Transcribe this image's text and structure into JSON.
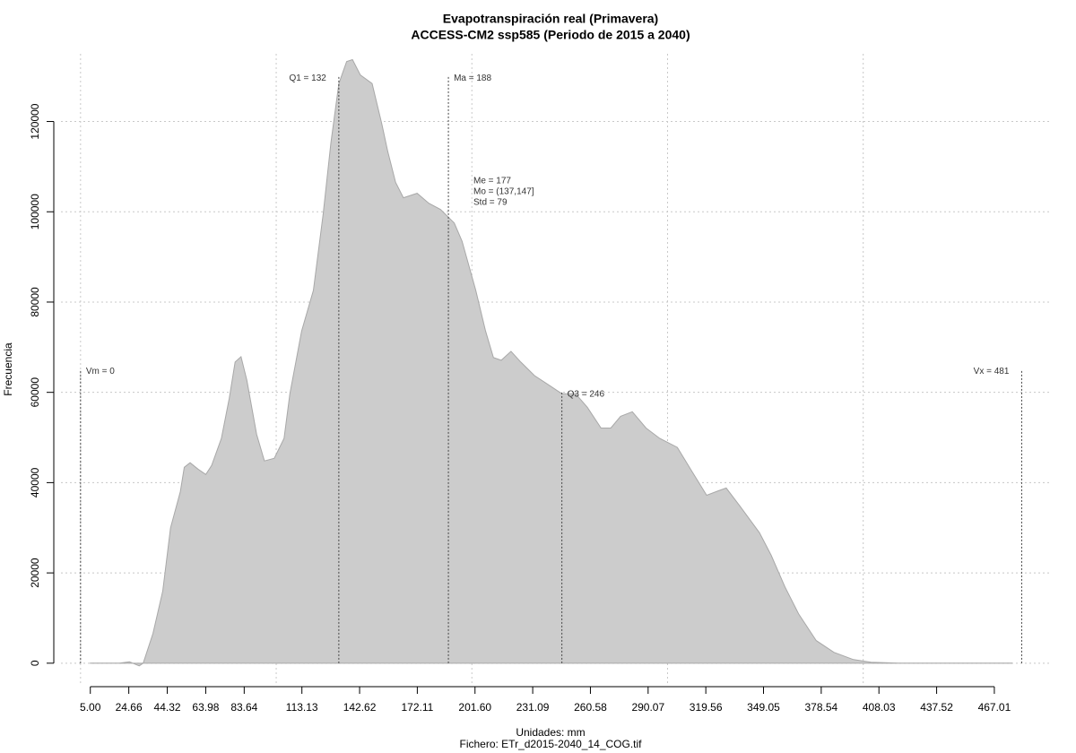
{
  "chart_data": {
    "type": "area",
    "title": "Evapotranspiración real (Primavera)",
    "subtitle": "ACCESS-CM2 ssp585 (Periodo de 2015 a 2040)",
    "xlabel": "Unidades: mm",
    "caption": "Fichero: ETr_d2015-2040_14_COG.tif",
    "ylabel": "Frecuencia",
    "color": "#cccccc",
    "x": [
      5,
      20,
      25,
      30,
      32,
      37,
      42,
      46,
      51,
      53,
      56,
      60,
      64,
      67,
      72,
      76,
      79,
      82,
      85,
      90,
      94,
      99,
      104,
      107,
      113,
      119,
      124,
      128,
      132,
      136,
      139,
      143,
      149,
      154,
      157,
      161,
      165,
      172,
      178,
      184,
      191,
      195,
      202,
      207,
      211,
      215,
      220,
      225,
      232,
      239,
      246,
      253,
      259,
      266,
      271,
      276,
      282,
      289,
      296,
      305,
      312,
      320,
      326,
      330,
      337,
      347,
      353,
      360,
      367,
      376,
      385,
      395,
      404,
      418,
      476
    ],
    "values": [
      0,
      0,
      300,
      -600,
      0,
      6600,
      16000,
      30000,
      38000,
      43400,
      44400,
      43000,
      41800,
      43800,
      49800,
      58700,
      66700,
      67900,
      62700,
      50700,
      44800,
      45400,
      49800,
      59700,
      73600,
      82600,
      99500,
      115400,
      128400,
      133300,
      133700,
      130300,
      128400,
      119400,
      113400,
      106500,
      103100,
      104100,
      101900,
      100500,
      97500,
      93500,
      82600,
      73600,
      67700,
      67100,
      69100,
      66700,
      63700,
      61700,
      59700,
      59700,
      56700,
      52100,
      52100,
      54700,
      55700,
      52100,
      49800,
      47800,
      42800,
      37200,
      38200,
      38800,
      34800,
      28900,
      23900,
      16900,
      10900,
      5000,
      2400,
      800,
      200,
      0,
      0
    ],
    "xlim": [
      -10,
      495
    ],
    "ylim": [
      -5000,
      135000
    ],
    "xticks": [
      {
        "value": 5,
        "label": "5.00"
      },
      24.66,
      44.32,
      63.98,
      83.64,
      113.13,
      142.62,
      172.11,
      {
        "value": 201.6,
        "label": "201.60"
      },
      231.09,
      260.58,
      290.07,
      319.56,
      349.05,
      378.54,
      408.03,
      437.52,
      467.01
    ],
    "yticks": [
      0,
      20000,
      40000,
      60000,
      80000,
      100000,
      120000
    ],
    "xgrid": [
      0,
      100,
      200,
      300,
      400
    ],
    "grid": true,
    "annotations": [
      {
        "label": "Vm = 0",
        "x": 0,
        "y": 65000
      },
      {
        "label": "Q1 = 132",
        "x": 132,
        "y": 130000
      },
      {
        "label": "Ma = 188",
        "x": 188,
        "y": 130000
      },
      {
        "label": "Q3 = 246",
        "x": 246,
        "y": 60000
      },
      {
        "label": "Vx = 481",
        "x": 481,
        "y": 65000
      }
    ],
    "stats": [
      "Me = 177",
      "Mo = (137,147]",
      "Std = 79"
    ]
  }
}
